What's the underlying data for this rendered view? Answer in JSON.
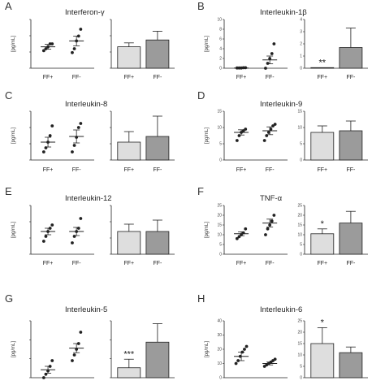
{
  "chart_data": [
    {
      "panel": "A",
      "title": "Interferon-γ",
      "ylabel": "[pg/mL]",
      "categories": [
        "FF+",
        "FF-"
      ],
      "dot": {
        "ylim": [
          0,
          50
        ],
        "ticks": [],
        "groups": [
          {
            "points": [
              18,
              20,
              22,
              25,
              25
            ],
            "mean": 22,
            "sem": 2.5
          },
          {
            "points": [
              16,
              20,
              28,
              33,
              40
            ],
            "mean": 28,
            "sem": 5
          }
        ]
      },
      "bar": {
        "ylim": [
          0,
          50
        ],
        "ticks": [],
        "values": [
          22,
          29
        ],
        "errors": [
          4,
          9
        ],
        "stars": [
          "",
          ""
        ]
      }
    },
    {
      "panel": "B",
      "title": "Interleukin-1β",
      "ylabel": "[pg/mL]",
      "categories": [
        "FF+",
        "FF-"
      ],
      "dot": {
        "ylim": [
          0,
          10
        ],
        "ticks": [
          "10",
          "8",
          "6",
          "4",
          "2",
          "0"
        ],
        "groups": [
          {
            "points": [
              0.05,
              0.05,
              0.05,
              0.1,
              0.1
            ],
            "mean": 0.05,
            "sem": 0.02
          },
          {
            "points": [
              0,
              1,
              2,
              3,
              5
            ],
            "mean": 1.7,
            "sem": 0.8
          }
        ]
      },
      "bar": {
        "ylim": [
          0,
          4
        ],
        "ticks": [
          "4",
          "3",
          "2",
          "1",
          "0"
        ],
        "values": [
          0.05,
          1.7
        ],
        "errors": [
          0,
          1.6
        ],
        "stars": [
          "**",
          ""
        ]
      }
    },
    {
      "panel": "C",
      "title": "Interleukin-8",
      "ylabel": "[pg/mL]",
      "categories": [
        "FF+",
        "FF-"
      ],
      "dot": {
        "ylim": [
          0,
          600
        ],
        "ticks": [],
        "groups": [
          {
            "points": [
              100,
              150,
              220,
              300,
              420
            ],
            "mean": 220,
            "sem": 60
          },
          {
            "points": [
              100,
              180,
              280,
              400,
              450
            ],
            "mean": 290,
            "sem": 80
          }
        ]
      },
      "bar": {
        "ylim": [
          0,
          600
        ],
        "ticks": [],
        "values": [
          220,
          290
        ],
        "errors": [
          130,
          250
        ],
        "stars": [
          "",
          ""
        ]
      }
    },
    {
      "panel": "D",
      "title": "Interleukin-9",
      "ylabel": "[pg/mL]",
      "categories": [
        "FF+",
        "FF-"
      ],
      "dot": {
        "ylim": [
          0,
          15
        ],
        "ticks": [
          "15",
          "10",
          "5",
          "0"
        ],
        "groups": [
          {
            "points": [
              6,
              7.5,
              8.5,
              9,
              9.5
            ],
            "mean": 8.5,
            "sem": 0.8
          },
          {
            "points": [
              6,
              7.5,
              8.5,
              9.5,
              10.5,
              11
            ],
            "mean": 9,
            "sem": 1.2
          }
        ]
      },
      "bar": {
        "ylim": [
          0,
          15
        ],
        "ticks": [
          "15",
          "10",
          "5",
          "0"
        ],
        "values": [
          8.5,
          9
        ],
        "errors": [
          2,
          3
        ],
        "stars": [
          "",
          ""
        ]
      }
    },
    {
      "panel": "E",
      "title": "Interleukin-12",
      "ylabel": "[pg/mL]",
      "categories": [
        "FF+",
        "FF-"
      ],
      "dot": {
        "ylim": [
          0,
          300
        ],
        "ticks": [],
        "groups": [
          {
            "points": [
              80,
              110,
              140,
              160,
              180
            ],
            "mean": 140,
            "sem": 20
          },
          {
            "points": [
              70,
              110,
              140,
              160,
              220
            ],
            "mean": 140,
            "sem": 25
          }
        ]
      },
      "bar": {
        "ylim": [
          0,
          300
        ],
        "ticks": [],
        "values": [
          140,
          140
        ],
        "errors": [
          45,
          70
        ],
        "stars": [
          "",
          ""
        ]
      }
    },
    {
      "panel": "F",
      "title": "TNF-α",
      "ylabel": "[pg/mL]",
      "categories": [
        "FF+",
        "FF-"
      ],
      "dot": {
        "ylim": [
          0,
          25
        ],
        "ticks": [
          "25",
          "20",
          "15",
          "10",
          "5",
          "0"
        ],
        "groups": [
          {
            "points": [
              8,
              9,
              10,
              11,
              13
            ],
            "mean": 10.5,
            "sem": 1
          },
          {
            "points": [
              10,
              13,
              15,
              17,
              20
            ],
            "mean": 16,
            "sem": 2
          }
        ]
      },
      "bar": {
        "ylim": [
          0,
          25
        ],
        "ticks": [
          "25",
          "20",
          "15",
          "10",
          "5",
          "0"
        ],
        "values": [
          10.5,
          16
        ],
        "errors": [
          2.5,
          6
        ],
        "stars": [
          "*",
          ""
        ]
      }
    },
    {
      "panel": "G",
      "title": "Interleukin-5",
      "ylabel": "[pg/mL]",
      "categories": [
        "FF+",
        "FF-"
      ],
      "dot": {
        "ylim": [
          0,
          5
        ],
        "ticks": [],
        "groups": [
          {
            "points": [
              0,
              0.3,
              0.6,
              1,
              1.5
            ],
            "mean": 0.7,
            "sem": 0.3
          },
          {
            "points": [
              1.5,
              2,
              2.5,
              3,
              4
            ],
            "mean": 2.6,
            "sem": 0.4
          }
        ]
      },
      "bar": {
        "ylim": [
          0,
          4
        ],
        "ticks": [],
        "values": [
          0.7,
          2.5
        ],
        "errors": [
          0.6,
          1.3
        ],
        "stars": [
          "***",
          ""
        ]
      }
    },
    {
      "panel": "H",
      "title": "Interleukin-6",
      "ylabel": "[pg/mL]",
      "categories": [
        "FF+",
        "FF-"
      ],
      "dot": {
        "ylim": [
          0,
          40
        ],
        "ticks": [
          "40",
          "30",
          "20",
          "10",
          "0"
        ],
        "groups": [
          {
            "points": [
              10,
              12,
              15,
              18,
              20,
              22
            ],
            "mean": 15,
            "sem": 3
          },
          {
            "points": [
              8,
              9,
              10,
              11,
              12,
              13
            ],
            "mean": 10,
            "sem": 1
          }
        ]
      },
      "bar": {
        "ylim": [
          0,
          25
        ],
        "ticks": [
          "25",
          "20",
          "15",
          "10",
          "5",
          "0"
        ],
        "values": [
          15,
          11
        ],
        "errors": [
          7,
          2.5
        ],
        "stars": [
          "*",
          ""
        ]
      }
    }
  ],
  "colors": {
    "bar_ffplus": "#dedede",
    "bar_ffminus": "#9b9b9b",
    "ink": "#222222"
  }
}
